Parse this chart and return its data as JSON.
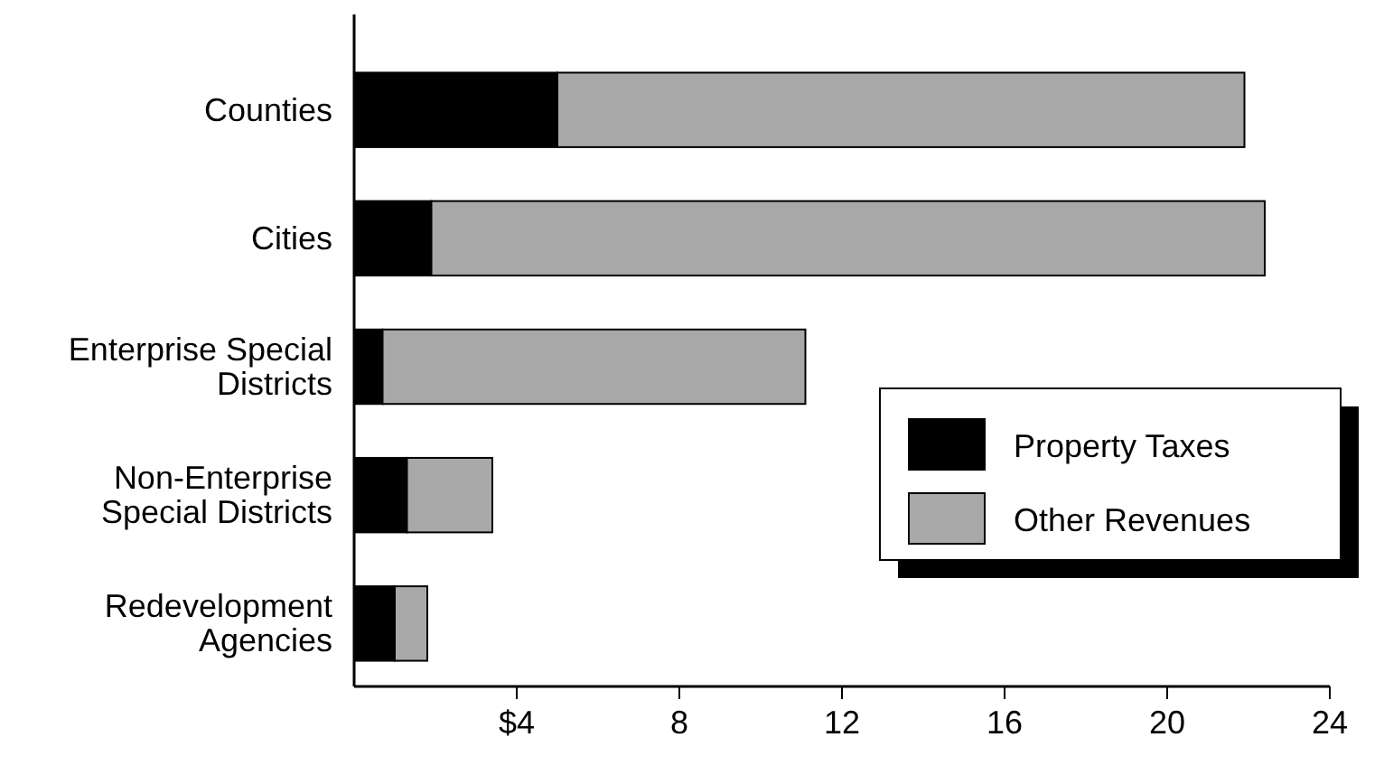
{
  "chart_data": {
    "type": "bar",
    "orientation": "horizontal",
    "stacked": true,
    "categories": [
      "Counties",
      "Cities",
      "Enterprise Special Districts",
      "Non-Enterprise Special Districts",
      "Redevelopment Agencies"
    ],
    "series": [
      {
        "name": "Property Taxes",
        "color": "#000000",
        "values": [
          5.0,
          1.9,
          0.7,
          1.3,
          1.0
        ]
      },
      {
        "name": "Other Revenues",
        "color": "#a8a8a8",
        "values": [
          16.9,
          20.5,
          10.4,
          2.1,
          0.8
        ]
      }
    ],
    "xlim": [
      0,
      24
    ],
    "xticks": [
      {
        "value": 4,
        "label": "$4"
      },
      8,
      12,
      16,
      20,
      24
    ],
    "grid": false,
    "legend": "bottom right"
  }
}
